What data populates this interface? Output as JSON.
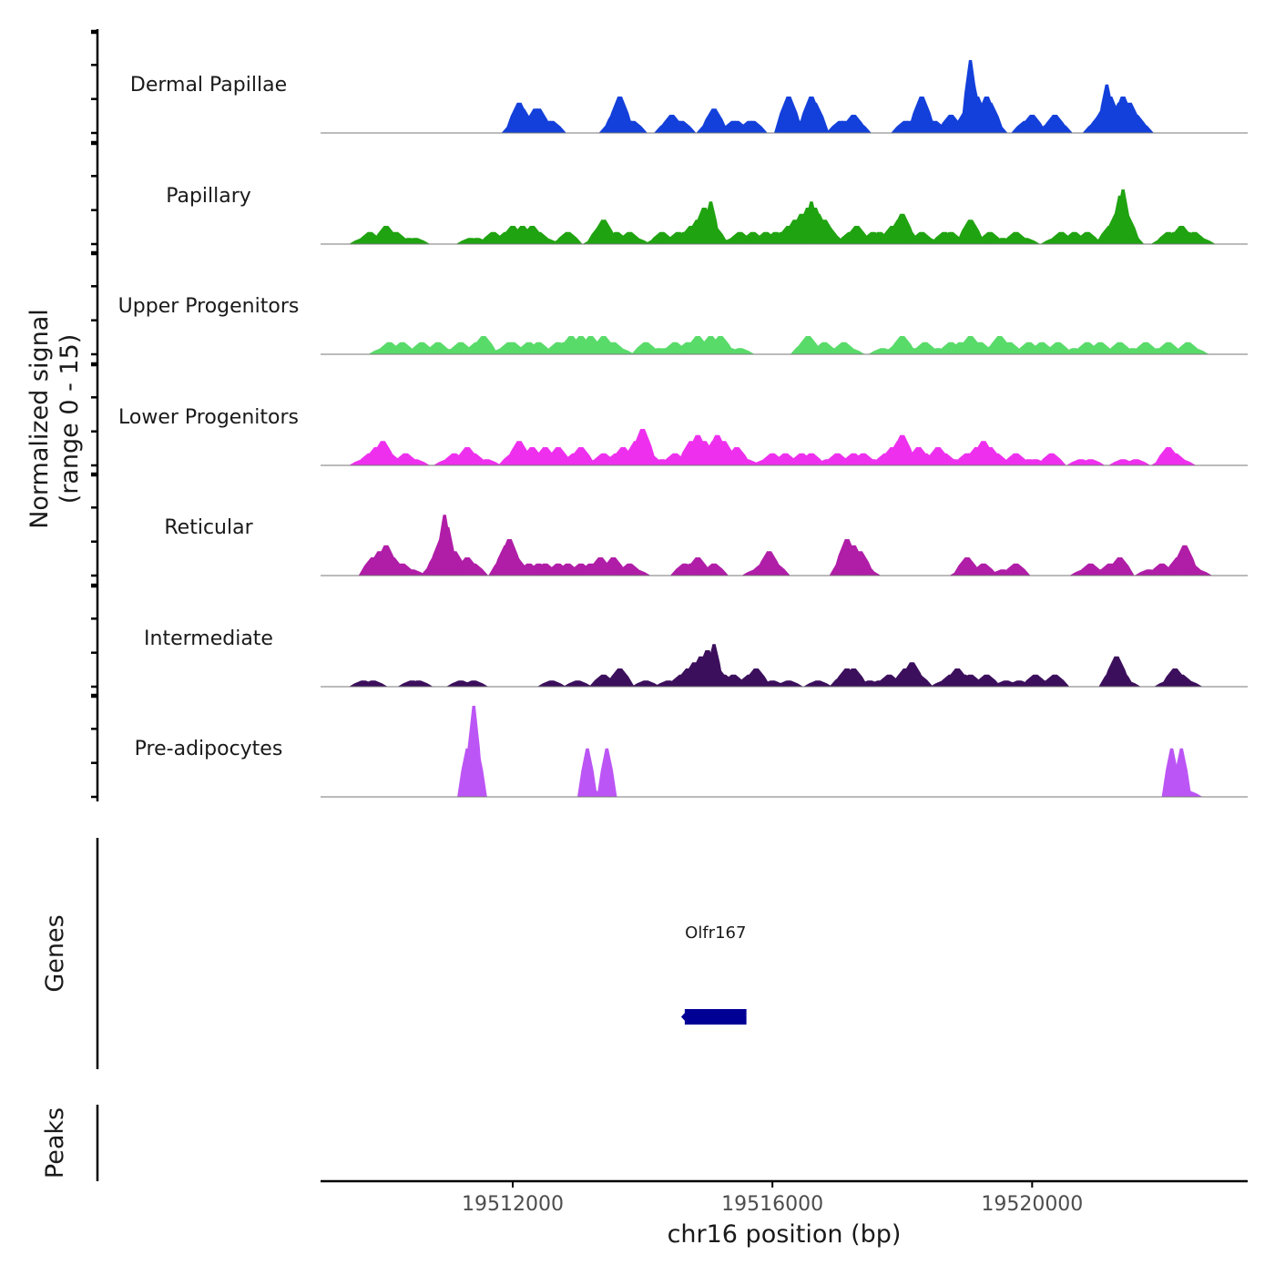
{
  "chart_data": {
    "type": "area",
    "title": "",
    "ylabel_line1": "Normalized signal",
    "ylabel_line2": "(range 0 - 15)",
    "y_range": [
      0,
      15
    ],
    "xlabel": "chr16 position (bp)",
    "x_range": [
      19509040,
      19523320
    ],
    "x_ticks": [
      19512000,
      19516000,
      19520000
    ],
    "x_tick_labels": [
      "19512000",
      "19516000",
      "19520000"
    ],
    "series": [
      {
        "name": "Dermal Papillae",
        "color": "#1340DB",
        "x": [
          19512050,
          19512100,
          19512150,
          19512200,
          19512350,
          19512400,
          19512550,
          19512600,
          19513550,
          19513600,
          19513650,
          19513700,
          19513800,
          19513850,
          19514400,
          19514450,
          19514500,
          19514550,
          19514600,
          19515050,
          19515100,
          19515150,
          19515400,
          19515450,
          19515650,
          19515700,
          19516250,
          19516300,
          19516400,
          19516450,
          19516600,
          19516650,
          19517050,
          19517100,
          19517200,
          19517250,
          19517300,
          19518050,
          19518100,
          19518250,
          19518300,
          19518350,
          19518450,
          19518500,
          19518750,
          19518800,
          19519000,
          19519050,
          19519100,
          19519150,
          19519200,
          19519300,
          19519350,
          19519400,
          19519900,
          19519950,
          19520000,
          19520300,
          19520350,
          19520400,
          19521000,
          19521050,
          19521100,
          19521150,
          19521200,
          19521300,
          19521350,
          19521400,
          19521450,
          19521500,
          19521550,
          19521600,
          19521650
        ],
        "y": [
          2,
          5,
          4,
          2,
          4,
          4,
          2,
          2,
          2,
          4,
          6,
          3,
          2,
          2,
          2,
          3,
          2,
          2,
          2,
          2,
          4,
          2,
          2,
          2,
          2,
          2,
          6,
          2,
          2,
          2,
          6,
          5,
          2,
          2,
          2,
          3,
          2,
          2,
          2,
          3,
          6,
          2,
          2,
          2,
          3,
          2,
          4,
          12,
          8,
          6,
          4,
          6,
          5,
          2,
          2,
          2,
          3,
          2,
          3,
          2,
          2,
          3,
          4,
          8,
          6,
          3,
          5,
          6,
          3,
          5,
          2,
          3,
          2
        ]
      },
      {
        "name": "Papillary",
        "color": "#1FA310",
        "x": [
          19509700,
          19509800,
          19509900,
          19510050,
          19510150,
          19510200,
          19510400,
          19510500,
          19511350,
          19511450,
          19511650,
          19511700,
          19511800,
          19511900,
          19512000,
          19512100,
          19512150,
          19512200,
          19512300,
          19512400,
          19512500,
          19512800,
          19512850,
          19513300,
          19513350,
          19513400,
          19513600,
          19513700,
          19513800,
          19513900,
          19514250,
          19514300,
          19514450,
          19514550,
          19514650,
          19514750,
          19514850,
          19514950,
          19515050,
          19515100,
          19515150,
          19515400,
          19515500,
          19515650,
          19515700,
          19515750,
          19515800,
          19515900,
          19515950,
          19516050,
          19516150,
          19516250,
          19516350,
          19516450,
          19516550,
          19516600,
          19516650,
          19516700,
          19516800,
          19516850,
          19516900,
          19517150,
          19517200,
          19517300,
          19517350,
          19517450,
          19517550,
          19517650,
          19517750,
          19517850,
          19517950,
          19518000,
          19518050,
          19518250,
          19518300,
          19518400,
          19518600,
          19518650,
          19518750,
          19518800,
          19519000,
          19519050,
          19519150,
          19519350,
          19519450,
          19519550,
          19519700,
          19519750,
          19519900,
          19520350,
          19520450,
          19520650,
          19520750,
          19520850,
          19521100,
          19521200,
          19521300,
          19521350,
          19521400,
          19521450,
          19521500,
          19522050,
          19522100,
          19522200,
          19522300,
          19522400,
          19522500,
          19522600
        ],
        "y": [
          1,
          2,
          1,
          3,
          1,
          2,
          1,
          1,
          1,
          1,
          1,
          2,
          1,
          2,
          3,
          2,
          3,
          2,
          3,
          2,
          1,
          1,
          2,
          1,
          3,
          4,
          2,
          1,
          2,
          1,
          1,
          2,
          1,
          2,
          2,
          3,
          4,
          6,
          7,
          3,
          1,
          1,
          2,
          1,
          2,
          1,
          1,
          2,
          1,
          2,
          2,
          3,
          4,
          5,
          6,
          7,
          6,
          5,
          4,
          3,
          2,
          1,
          2,
          3,
          2,
          1,
          2,
          2,
          1,
          3,
          4,
          5,
          3,
          1,
          2,
          1,
          1,
          2,
          2,
          1,
          2,
          4,
          1,
          2,
          1,
          1,
          1,
          2,
          1,
          1,
          2,
          2,
          1,
          2,
          1,
          3,
          5,
          8,
          9,
          5,
          2,
          1,
          2,
          2,
          3,
          2,
          2,
          1
        ]
      },
      {
        "name": "Upper Progenitors",
        "color": "#59DB6A",
        "x": [
          19510000,
          19510100,
          19510200,
          19510300,
          19510400,
          19510600,
          19510700,
          19510850,
          19510950,
          19511100,
          19511200,
          19511300,
          19511450,
          19511550,
          19511850,
          19511950,
          19512000,
          19512150,
          19512250,
          19512350,
          19512400,
          19512650,
          19512700,
          19512800,
          19512900,
          19512950,
          19513050,
          19513150,
          19513200,
          19513300,
          19513400,
          19513450,
          19513550,
          19513650,
          19514050,
          19514250,
          19514350,
          19514500,
          19514600,
          19514700,
          19514800,
          19514850,
          19514950,
          19515050,
          19515200,
          19515350,
          19515500,
          19516500,
          19516550,
          19516600,
          19516650,
          19516800,
          19516950,
          19517000,
          19517100,
          19517200,
          19517700,
          19517850,
          19517950,
          19518000,
          19518200,
          19518350,
          19518550,
          19518750,
          19518900,
          19519050,
          19519200,
          19519400,
          19519450,
          19519500,
          19519550,
          19519650,
          19519750,
          19519950,
          19520050,
          19520150,
          19520300,
          19520400,
          19520650,
          19520850,
          19520950,
          19521050,
          19521150,
          19521350,
          19521550,
          19521750,
          19521950,
          19522100,
          19522300,
          19522400,
          19522500
        ],
        "y": [
          1,
          2,
          1,
          2,
          1,
          2,
          1,
          2,
          1,
          1,
          2,
          1,
          2,
          3,
          1,
          2,
          2,
          1,
          2,
          1,
          2,
          1,
          2,
          2,
          3,
          2,
          3,
          2,
          3,
          2,
          3,
          2,
          2,
          1,
          2,
          1,
          1,
          2,
          1,
          2,
          1,
          3,
          2,
          3,
          3,
          1,
          1,
          2,
          3,
          2,
          1,
          2,
          1,
          1,
          2,
          1,
          1,
          1,
          2,
          3,
          1,
          2,
          1,
          2,
          2,
          3,
          2,
          1,
          2,
          3,
          2,
          2,
          1,
          2,
          1,
          2,
          1,
          2,
          1,
          2,
          1,
          2,
          1,
          2,
          1,
          2,
          1,
          2,
          1,
          2,
          1
        ]
      },
      {
        "name": "Lower Progenitors",
        "color": "#EE30EE",
        "x": [
          19509700,
          19509800,
          19509900,
          19510000,
          19510100,
          19510200,
          19510350,
          19510500,
          19511000,
          19511100,
          19511200,
          19511300,
          19511400,
          19511600,
          19512000,
          19512100,
          19512200,
          19512300,
          19512400,
          19512500,
          19512600,
          19512700,
          19512800,
          19512950,
          19513050,
          19513150,
          19513300,
          19513400,
          19513500,
          19513600,
          19513700,
          19513800,
          19513900,
          19514000,
          19514100,
          19514200,
          19514300,
          19514500,
          19514650,
          19514750,
          19514850,
          19514950,
          19515050,
          19515100,
          19515150,
          19515250,
          19515350,
          19515450,
          19515600,
          19515900,
          19516000,
          19516150,
          19516200,
          19516300,
          19516450,
          19516600,
          19516850,
          19517000,
          19517150,
          19517250,
          19517400,
          19517550,
          19517750,
          19517850,
          19517950,
          19518000,
          19518050,
          19518150,
          19518250,
          19518350,
          19518450,
          19518550,
          19518650,
          19518800,
          19519000,
          19519050,
          19519150,
          19519250,
          19519350,
          19519450,
          19519550,
          19519750,
          19519950,
          19520050,
          19520300,
          19520750,
          19520900,
          19521400,
          19521600,
          19522050,
          19522100,
          19522200,
          19522300
        ],
        "y": [
          1,
          2,
          3,
          4,
          2,
          1,
          2,
          1,
          1,
          2,
          1,
          3,
          2,
          1,
          2,
          4,
          2,
          3,
          2,
          3,
          2,
          3,
          1,
          2,
          3,
          1,
          1,
          2,
          1,
          2,
          3,
          2,
          4,
          6,
          2,
          1,
          1,
          2,
          1,
          4,
          5,
          4,
          3,
          4,
          5,
          4,
          2,
          3,
          1,
          1,
          2,
          1,
          2,
          1,
          2,
          2,
          1,
          2,
          1,
          2,
          2,
          1,
          2,
          3,
          4,
          5,
          3,
          2,
          3,
          2,
          1,
          3,
          2,
          1,
          2,
          2,
          3,
          4,
          3,
          2,
          1,
          2,
          1,
          1,
          2,
          1,
          1,
          1,
          1,
          1,
          3,
          2,
          1
        ]
      },
      {
        "name": "Reticular",
        "color": "#B01DA7",
        "x": [
          19509850,
          19509950,
          19510050,
          19510150,
          19510300,
          19510450,
          19510800,
          19510850,
          19510900,
          19510950,
          19511000,
          19511100,
          19511150,
          19511300,
          19511400,
          19511850,
          19511900,
          19511950,
          19512000,
          19512050,
          19512100,
          19512250,
          19512400,
          19512500,
          19512550,
          19512700,
          19512850,
          19513000,
          19513050,
          19513200,
          19513350,
          19513450,
          19513550,
          19513800,
          19513900,
          19514650,
          19514750,
          19514850,
          19515000,
          19515100,
          19515750,
          19515850,
          19515950,
          19516050,
          19517100,
          19517150,
          19517200,
          19517250,
          19517300,
          19517350,
          19517400,
          19517450,
          19518950,
          19519000,
          19519050,
          19519150,
          19519250,
          19519550,
          19519750,
          19520800,
          19520900,
          19521050,
          19521200,
          19521350,
          19521800,
          19522000,
          19522150,
          19522250,
          19522350,
          19522450,
          19522550
        ],
        "y": [
          3,
          4,
          5,
          3,
          2,
          1,
          2,
          4,
          6,
          10,
          8,
          4,
          2,
          3,
          2,
          3,
          5,
          6,
          4,
          3,
          2,
          2,
          2,
          2,
          1,
          2,
          2,
          1,
          2,
          2,
          3,
          2,
          3,
          2,
          1,
          2,
          2,
          3,
          1,
          2,
          1,
          2,
          4,
          2,
          3,
          6,
          4,
          5,
          3,
          4,
          2,
          1,
          1,
          3,
          2,
          1,
          2,
          1,
          2,
          1,
          2,
          1,
          2,
          3,
          1,
          2,
          1,
          3,
          5,
          2,
          1
        ]
      },
      {
        "name": "Intermediate",
        "color": "#3C0F5C",
        "x": [
          19509700,
          19509850,
          19510450,
          19510550,
          19511200,
          19511400,
          19512600,
          19513000,
          19513400,
          19513550,
          19513600,
          19513650,
          19514050,
          19514400,
          19514600,
          19514700,
          19514800,
          19514900,
          19515000,
          19515100,
          19515150,
          19515250,
          19515350,
          19515400,
          19515500,
          19515650,
          19515750,
          19515850,
          19516000,
          19516250,
          19516700,
          19517100,
          19517150,
          19517200,
          19517250,
          19517350,
          19517500,
          19517650,
          19517800,
          19517950,
          19518050,
          19518150,
          19518250,
          19518650,
          19518750,
          19518850,
          19518950,
          19519050,
          19519150,
          19519300,
          19519600,
          19519800,
          19520050,
          19520200,
          19520350,
          19521250,
          19521300,
          19521350,
          19521450,
          19522100,
          19522200,
          19522300,
          19522400
        ],
        "y": [
          1,
          1,
          1,
          1,
          1,
          1,
          1,
          1,
          2,
          1,
          2,
          3,
          1,
          1,
          2,
          3,
          4,
          5,
          6,
          7,
          3,
          2,
          1,
          2,
          1,
          2,
          3,
          1,
          1,
          1,
          1,
          2,
          3,
          2,
          3,
          1,
          1,
          1,
          2,
          1,
          3,
          4,
          2,
          1,
          2,
          3,
          2,
          2,
          1,
          2,
          1,
          1,
          2,
          1,
          2,
          3,
          5,
          3,
          1,
          1,
          3,
          2,
          1
        ]
      },
      {
        "name": "Pre-adipocytes",
        "color": "#BC55F5",
        "x": [
          19511300,
          19511350,
          19511400,
          19511450,
          19513150,
          19513250,
          19513350,
          19513450,
          19522150,
          19522250,
          19522300,
          19522400
        ],
        "y": [
          8,
          8,
          15,
          8,
          8,
          1,
          1,
          8,
          8,
          1,
          8,
          1
        ]
      }
    ],
    "genes_track_label": "Genes",
    "gene": {
      "name": "Olfr167",
      "start": 19514650,
      "end": 19515600,
      "strand": "-",
      "color": "#000095"
    },
    "peaks_track_label": "Peaks"
  }
}
